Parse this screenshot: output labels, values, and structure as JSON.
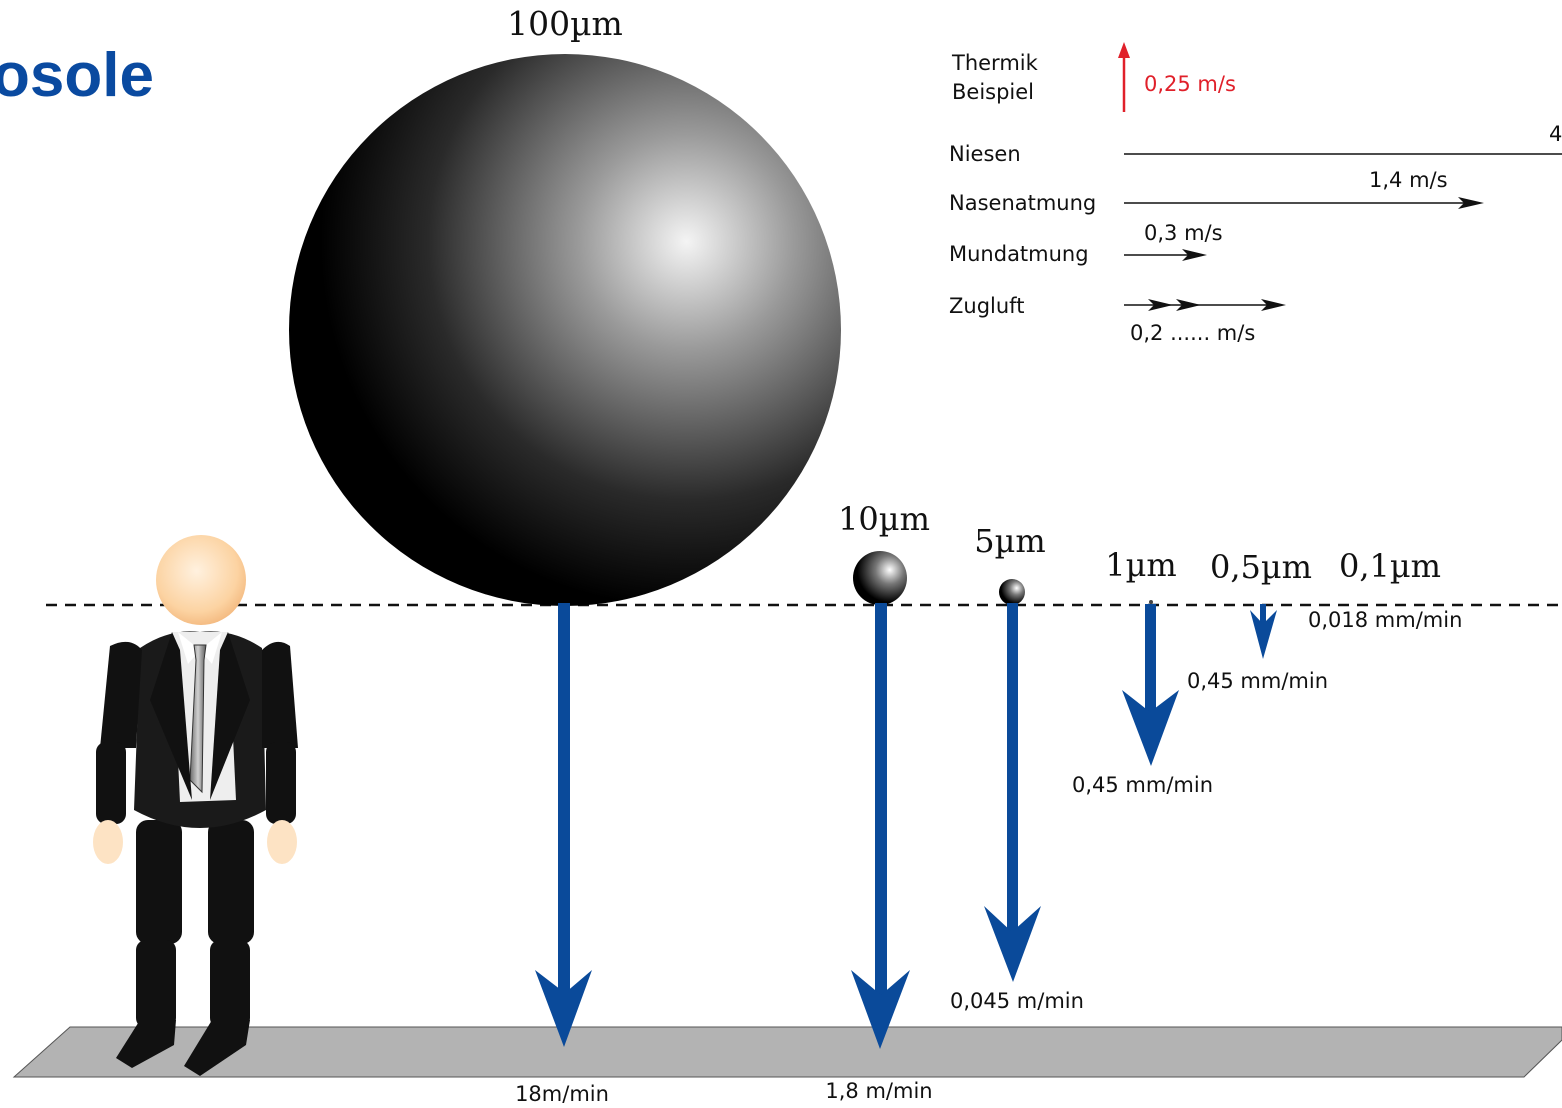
{
  "title": "osole",
  "particles": {
    "p100": "100µm",
    "p10": "10µm",
    "p5": "5µm",
    "p1": "1µm",
    "p05": "0,5µm",
    "p01": "0,1µm"
  },
  "sink_speeds": {
    "p100": "18m/min",
    "p10": "1,8 m/min",
    "p5": "0,045 m/min",
    "p1": "0,45 mm/min",
    "p05": "0,45 mm/min",
    "p01": "0,018 mm/min"
  },
  "legend": {
    "thermik_line1": "Thermik",
    "thermik_line2": "Beispiel",
    "thermik_speed": "0,25 m/s",
    "niesen": "Niesen",
    "niesen_speed": "4",
    "nasenatmung": "Nasenatmung",
    "nasenatmung_speed": "1,4 m/s",
    "mundatmung": "Mundatmung",
    "mundatmung_speed": "0,3 m/s",
    "zugluft": "Zugluft",
    "zugluft_speed": "0,2 ...... m/s"
  },
  "colors": {
    "title": "#0a4aa0",
    "arrow_blue": "#0a4a9a",
    "thermik_red": "#e0202a",
    "floor": "#b3b3b3"
  }
}
